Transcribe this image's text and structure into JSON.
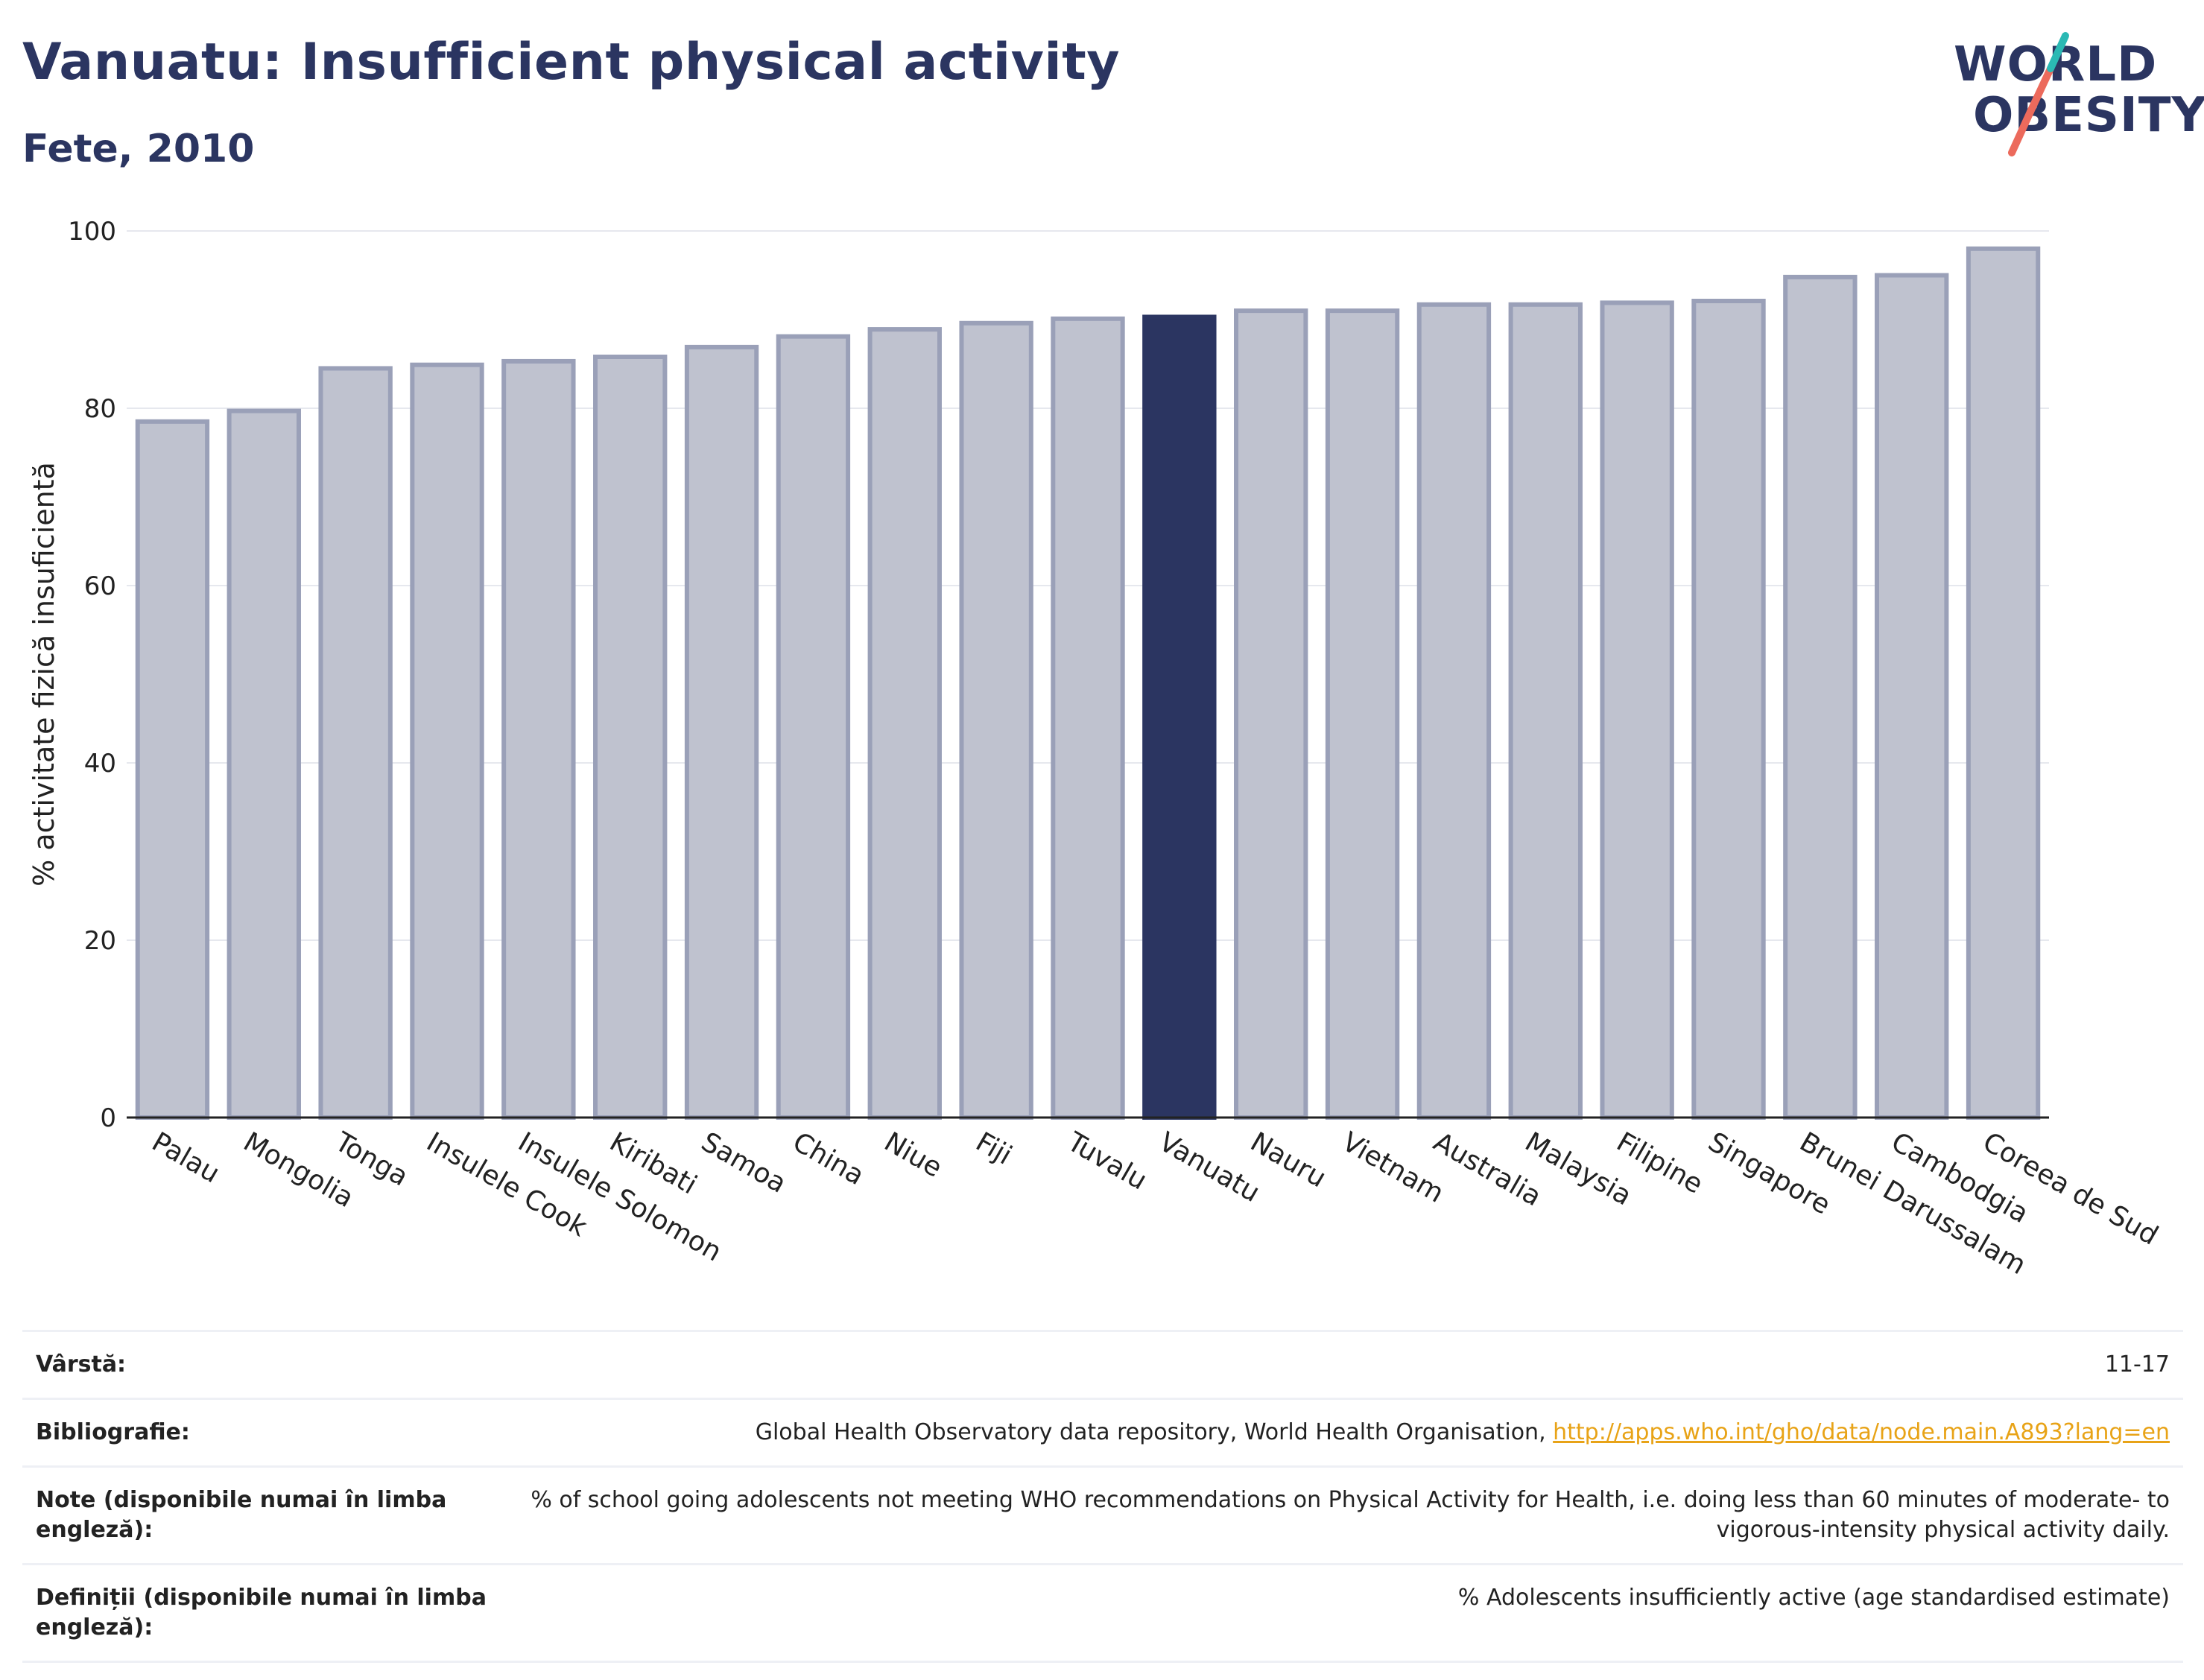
{
  "header": {
    "title": "Vanuatu: Insufficient physical activity",
    "subtitle": "Fete, 2010"
  },
  "logo": {
    "line1": "WORLD",
    "line2": "OBESITY"
  },
  "colors": {
    "bar": "#bfc2cf",
    "bar_edge": "#9aa0b8",
    "highlight": "#2b3561",
    "grid": "#e6e8ee",
    "title": "#2b3561",
    "link": "#e8a317",
    "logo_teal": "#2bb9b4",
    "logo_coral": "#ec6a5c"
  },
  "chart_data": {
    "type": "bar",
    "ylabel": "% activitate fizică insuficientă",
    "ylim": [
      0,
      100
    ],
    "yticks": [
      0,
      20,
      40,
      60,
      80,
      100
    ],
    "grid": true,
    "highlight": "Vanuatu",
    "categories": [
      "Palau",
      "Mongolia",
      "Tonga",
      "Insulele Cook",
      "Insulele Solomon",
      "Kiribati",
      "Samoa",
      "China",
      "Niue",
      "Fiji",
      "Tuvalu",
      "Vanuatu",
      "Nauru",
      "Vietnam",
      "Australia",
      "Malaysia",
      "Filipine",
      "Singapore",
      "Brunei Darussalam",
      "Cambodgia",
      "Coreea de Sud"
    ],
    "values": [
      78.5,
      79.7,
      84.5,
      84.9,
      85.3,
      85.8,
      86.9,
      88.1,
      88.9,
      89.6,
      90.1,
      90.3,
      91.0,
      91.0,
      91.7,
      91.7,
      91.9,
      92.1,
      94.8,
      95.0,
      98.0
    ]
  },
  "info": [
    {
      "key": "Vârstă:",
      "value": "11-17"
    },
    {
      "key": "Bibliografie:",
      "value": "Global Health Observatory data repository, World Health Organisation, ",
      "link": "http://apps.who.int/gho/data/node.main.A893?lang=en"
    },
    {
      "key": "Note (disponibile numai în limba engleză):",
      "value": "% of school going adolescents not meeting WHO recommendations on Physical Activity for Health, i.e. doing less than 60 minutes of moderate- to vigorous-intensity physical activity daily."
    },
    {
      "key": "Definiții (disponibile numai în limba engleză):",
      "value": "% Adolescents insufficiently active (age standardised estimate)"
    }
  ]
}
